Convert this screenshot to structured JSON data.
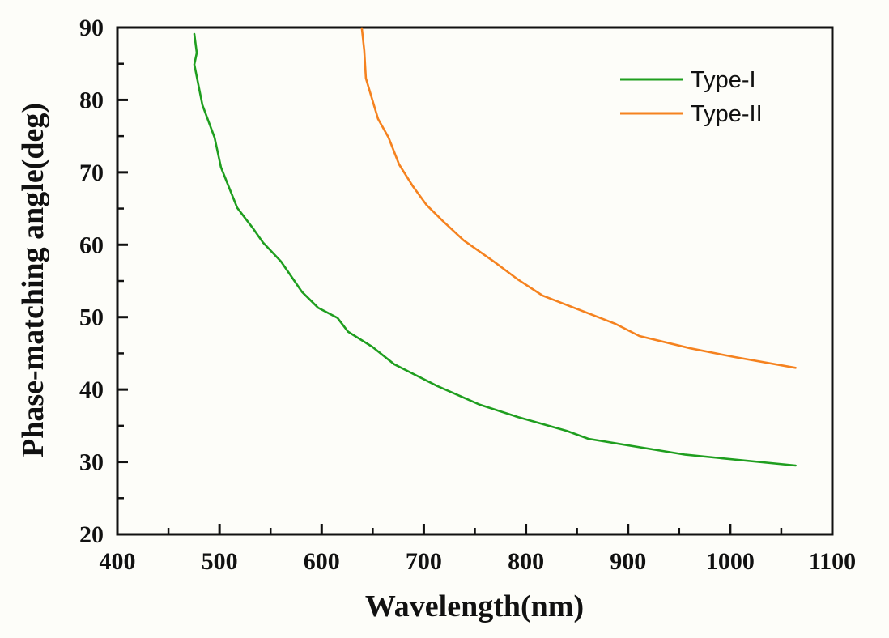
{
  "chart_data": {
    "type": "line",
    "title": "",
    "xlabel": "Wavelength(nm)",
    "ylabel": "Phase-matching angle(deg)",
    "xlim": [
      400,
      1100
    ],
    "ylim": [
      20,
      90
    ],
    "xticks": [
      400,
      500,
      600,
      700,
      800,
      900,
      1000,
      1100
    ],
    "xtick_labels": [
      "400",
      "500",
      "600",
      "700",
      "800",
      "900",
      "1000",
      "1100"
    ],
    "xminor": [
      450,
      550,
      650,
      750,
      850,
      950,
      1050
    ],
    "yticks": [
      20,
      30,
      40,
      50,
      60,
      70,
      80,
      90
    ],
    "ytick_labels": [
      "20",
      "30",
      "40",
      "50",
      "60",
      "70",
      "80",
      "90"
    ],
    "yminor": [
      25,
      35,
      45,
      55,
      65,
      75,
      85
    ],
    "grid": false,
    "legend_position": "top-right",
    "series": [
      {
        "name": "Type-I",
        "color": "#1f9e1f",
        "x": [
          475.3,
          477.7,
          475.3,
          483.2,
          495.1,
          501.4,
          517.3,
          533.1,
          542.6,
          560.1,
          580.7,
          596.5,
          615.5,
          625.8,
          649.6,
          671.0,
          713.0,
          755.0,
          792.2,
          839.8,
          861.2,
          956.2,
          1064.0
        ],
        "y": [
          89.1,
          86.5,
          84.9,
          79.3,
          74.8,
          70.7,
          65.1,
          62.2,
          60.3,
          57.7,
          53.5,
          51.3,
          49.9,
          48.0,
          45.9,
          43.5,
          40.5,
          37.9,
          36.2,
          34.3,
          33.2,
          31.0,
          29.5
        ]
      },
      {
        "name": "Type-II",
        "color": "#f5821f",
        "x": [
          639.3,
          641.7,
          643.3,
          649.6,
          655.2,
          665.5,
          675.8,
          689.2,
          702.7,
          718.5,
          739.1,
          768.5,
          792.2,
          816.0,
          887.3,
          911.1,
          961.0,
          1003.8,
          1064.0
        ],
        "y": [
          89.9,
          86.8,
          83.0,
          80.0,
          77.4,
          74.8,
          71.1,
          68.1,
          65.5,
          63.3,
          60.6,
          57.7,
          55.2,
          53.0,
          49.1,
          47.4,
          45.7,
          44.5,
          43.0
        ]
      }
    ]
  }
}
